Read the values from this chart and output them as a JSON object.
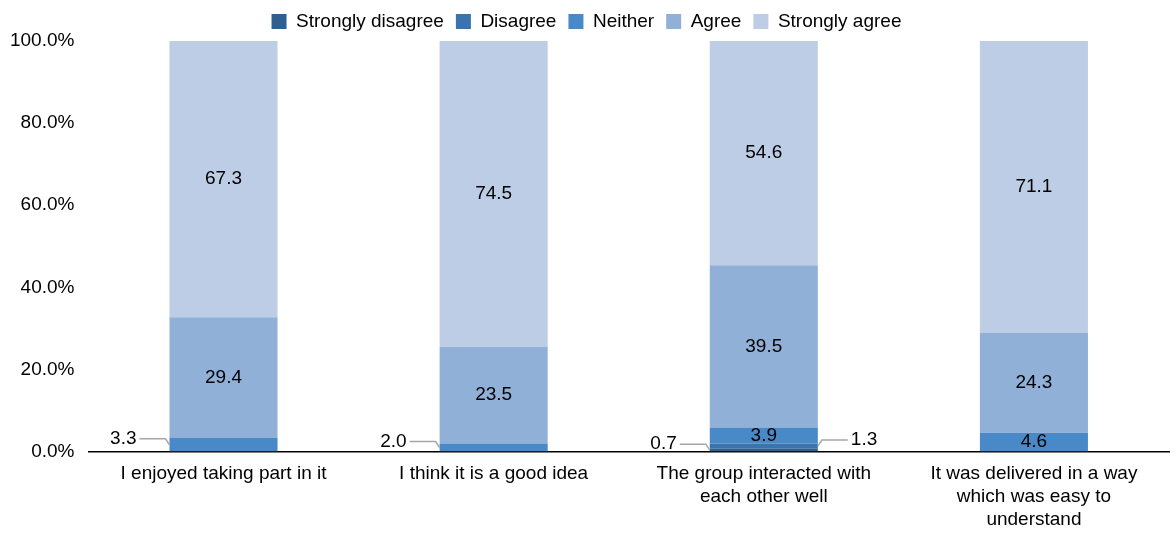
{
  "chart_data": {
    "type": "bar",
    "stacked": true,
    "categories": [
      "I enjoyed taking part in it",
      "I think it is a good idea",
      "The group interacted with each other well",
      "It was delivered in a way which was easy to understand"
    ],
    "series": [
      {
        "name": "Strongly disagree",
        "color": "#2e5f8f",
        "values": [
          null,
          null,
          0.7,
          null
        ],
        "value_labels": [
          null,
          null,
          "0.7",
          null
        ]
      },
      {
        "name": "Disagree",
        "color": "#3a73ad",
        "values": [
          null,
          null,
          1.3,
          null
        ],
        "value_labels": [
          null,
          null,
          "1.3",
          null
        ]
      },
      {
        "name": "Neither",
        "color": "#4a89c8",
        "values": [
          3.3,
          2.0,
          3.9,
          4.6
        ],
        "value_labels": [
          "3.3",
          "2.0",
          "3.9",
          "4.6"
        ]
      },
      {
        "name": "Agree",
        "color": "#91b0d8",
        "values": [
          29.4,
          23.5,
          39.5,
          24.3
        ],
        "value_labels": [
          "29.4",
          "23.5",
          "39.5",
          "24.3"
        ]
      },
      {
        "name": "Strongly agree",
        "color": "#bdcde6",
        "values": [
          67.3,
          74.5,
          54.6,
          71.1
        ],
        "value_labels": [
          "67.3",
          "74.5",
          "54.6",
          "71.1"
        ]
      }
    ],
    "ylim": [
      0,
      100
    ],
    "yticks": [
      {
        "value": 0,
        "label": "0.0%"
      },
      {
        "value": 20,
        "label": "20.0%"
      },
      {
        "value": 40,
        "label": "40.0%"
      },
      {
        "value": 60,
        "label": "60.0%"
      },
      {
        "value": 80,
        "label": "80.0%"
      },
      {
        "value": 100,
        "label": "100.0%"
      }
    ],
    "grid": false,
    "legend": "top"
  }
}
